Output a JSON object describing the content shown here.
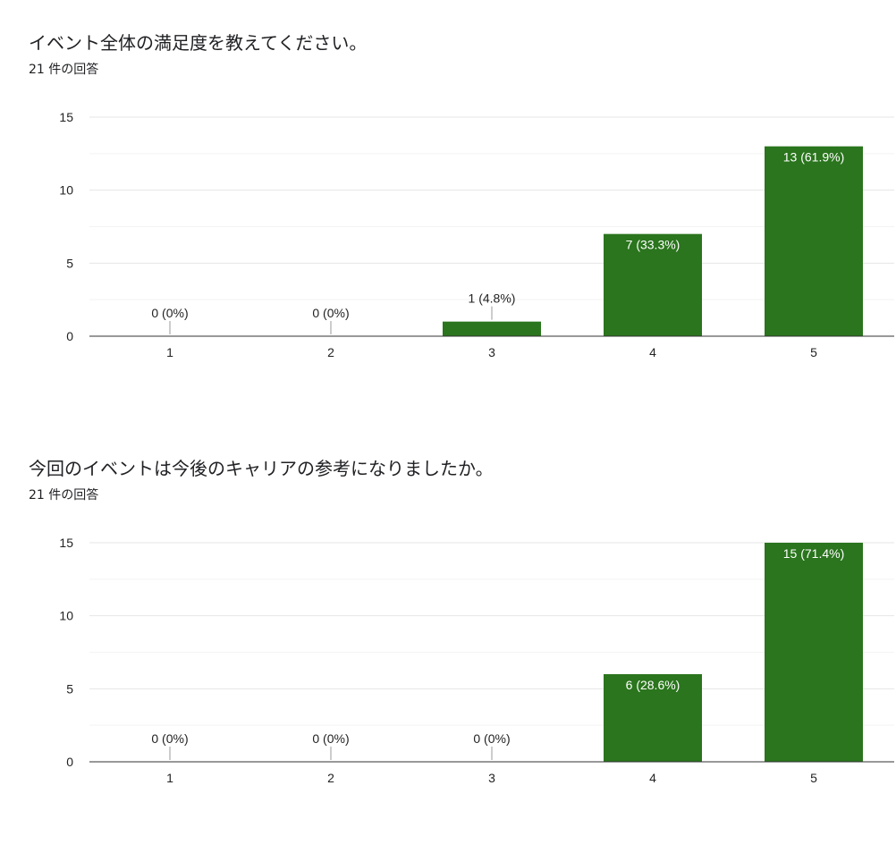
{
  "questions": [
    {
      "title": "イベント全体の満足度を教えてください。",
      "responses": "21 件の回答"
    },
    {
      "title": "今回のイベントは今後のキャリアの参考になりましたか。",
      "responses": "21 件の回答"
    }
  ],
  "bar_color": "#2a751d",
  "chart_data": [
    {
      "type": "bar",
      "title": "イベント全体の満足度を教えてください。",
      "xlabel": "",
      "ylabel": "",
      "categories": [
        "1",
        "2",
        "3",
        "4",
        "5"
      ],
      "values": [
        0,
        0,
        1,
        7,
        13
      ],
      "data_labels": [
        "0 (0%)",
        "0 (0%)",
        "1 (4.8%)",
        "7 (33.3%)",
        "13 (61.9%)"
      ],
      "ylim": [
        0,
        15
      ],
      "yticks": [
        0,
        5,
        10,
        15
      ],
      "grid": true,
      "legend": "none"
    },
    {
      "type": "bar",
      "title": "今回のイベントは今後のキャリアの参考になりましたか。",
      "xlabel": "",
      "ylabel": "",
      "categories": [
        "1",
        "2",
        "3",
        "4",
        "5"
      ],
      "values": [
        0,
        0,
        0,
        6,
        15
      ],
      "data_labels": [
        "0 (0%)",
        "0 (0%)",
        "0 (0%)",
        "6 (28.6%)",
        "15 (71.4%)"
      ],
      "ylim": [
        0,
        15
      ],
      "yticks": [
        0,
        5,
        10,
        15
      ],
      "grid": true,
      "legend": "none"
    }
  ]
}
